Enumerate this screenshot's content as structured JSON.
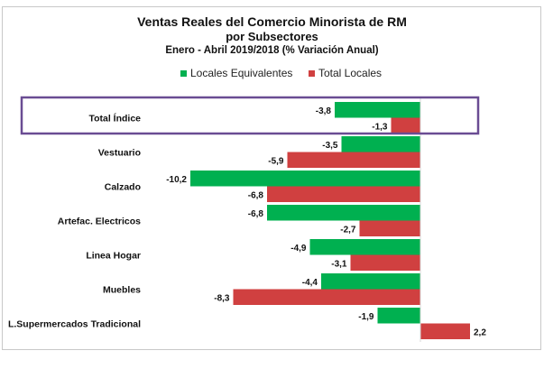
{
  "chart_data": {
    "type": "bar",
    "orientation": "horizontal",
    "title": "Ventas Reales del Comercio Minorista de RM",
    "subtitle": "por Subsectores",
    "subtitle2": "Enero - Abril 2019/2018 (% Variación Anual)",
    "categories": [
      "Total Índice",
      "Vestuario",
      "Calzado",
      "Artefac. Electricos",
      "Linea Hogar",
      "Muebles",
      "L.Supermercados Tradicional"
    ],
    "series": [
      {
        "name": "Locales Equivalentes",
        "color": "#00b050",
        "values": [
          -3.8,
          -3.5,
          -10.2,
          -6.8,
          -4.9,
          -4.4,
          -1.9
        ],
        "labels": [
          "-3,8",
          "-3,5",
          "-10,2",
          "-6,8",
          "-4,9",
          "-4,4",
          "-1,9"
        ]
      },
      {
        "name": "Total Locales",
        "color": "#d04040",
        "values": [
          -1.3,
          -5.9,
          -6.8,
          -2.7,
          -3.1,
          -8.3,
          2.2
        ],
        "labels": [
          "-1,3",
          "-5,9",
          "-6,8",
          "-2,7",
          "-3,1",
          "-8,3",
          "2,2"
        ]
      }
    ],
    "legend_position": "top-center",
    "highlight": {
      "category": "Total Índice",
      "color": "#6a4c93"
    },
    "grid": false
  }
}
